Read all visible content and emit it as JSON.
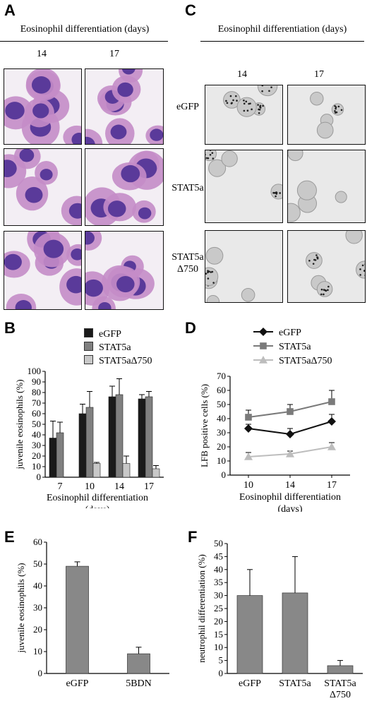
{
  "panels": {
    "a": {
      "label": "A",
      "header": "Eosinophil differentiation (days)",
      "days": [
        "14",
        "17"
      ],
      "rows": [
        "eGFP",
        "STAT5a",
        "STAT5a",
        "Δ750"
      ]
    },
    "b": {
      "label": "B"
    },
    "c": {
      "label": "C",
      "header": "Eosinophil differentiation (days)",
      "days": [
        "14",
        "17"
      ]
    },
    "d": {
      "label": "D"
    },
    "e": {
      "label": "E"
    },
    "f": {
      "label": "F"
    }
  },
  "colors": {
    "egfp_bar": "#1a1a1a",
    "stat5a_bar": "#808080",
    "delta_bar": "#c8c8c8",
    "egfp_line": "#111111",
    "stat5a_line": "#7a7a7a",
    "delta_line": "#bdbdbd",
    "single_bar": "#888888"
  },
  "chart_data": [
    {
      "panel": "B",
      "type": "bar",
      "categories": [
        "7",
        "10",
        "14",
        "17"
      ],
      "series": [
        {
          "name": "eGFP",
          "values": [
            37,
            60,
            76,
            74
          ],
          "errors": [
            16,
            9,
            10,
            4
          ]
        },
        {
          "name": "STAT5a",
          "values": [
            42,
            66,
            78,
            76
          ],
          "errors": [
            10,
            15,
            15,
            5
          ]
        },
        {
          "name": "STAT5aΔ750",
          "values": [
            null,
            13,
            13,
            8
          ],
          "errors": [
            null,
            1,
            7,
            3
          ]
        }
      ],
      "xlabel": "Eosinophil differentiation",
      "xlabel2": "(days)",
      "ylabel": "juvenile eosinophils (%)",
      "ylim": [
        0,
        100
      ],
      "yticks": [
        "0",
        "10",
        "20",
        "30",
        "40",
        "50",
        "60",
        "70",
        "80",
        "90",
        "100"
      ]
    },
    {
      "panel": "D",
      "type": "line",
      "x": [
        "10",
        "14",
        "17"
      ],
      "series": [
        {
          "name": "eGFP",
          "values": [
            33,
            29,
            38
          ],
          "errors": [
            3,
            4,
            5
          ],
          "marker": "diamond"
        },
        {
          "name": "STAT5a",
          "values": [
            41,
            45,
            52
          ],
          "errors": [
            5,
            5,
            8
          ],
          "marker": "square"
        },
        {
          "name": "STAT5aΔ750",
          "values": [
            13,
            15,
            20
          ],
          "errors": [
            3,
            2,
            3
          ],
          "marker": "triangle"
        }
      ],
      "xlabel": "Eosinophil differentiation",
      "xlabel2": "(days)",
      "ylabel": "LFB positive cells (%)",
      "ylim": [
        0,
        70
      ],
      "yticks": [
        "0",
        "10",
        "20",
        "30",
        "40",
        "50",
        "60",
        "70"
      ]
    },
    {
      "panel": "E",
      "type": "bar",
      "categories": [
        "eGFP",
        "5BDN"
      ],
      "series": [
        {
          "values": [
            49,
            9
          ],
          "errors": [
            2,
            3
          ]
        }
      ],
      "xlabel": "",
      "ylabel": "juvenile eosinophils (%)",
      "ylim": [
        0,
        60
      ],
      "yticks": [
        "0",
        "10",
        "20",
        "30",
        "40",
        "50",
        "60"
      ]
    },
    {
      "panel": "F",
      "type": "bar",
      "categories": [
        "eGFP",
        "STAT5a",
        "STAT5a"
      ],
      "category_line2": [
        "",
        "",
        "Δ750"
      ],
      "series": [
        {
          "values": [
            30,
            31,
            3
          ],
          "errors": [
            10,
            14,
            2
          ]
        }
      ],
      "xlabel": "",
      "ylabel": "neutrophil differentiation (%)",
      "ylim": [
        0,
        50
      ],
      "yticks": [
        "0",
        "5",
        "10",
        "15",
        "20",
        "25",
        "30",
        "35",
        "40",
        "45",
        "50"
      ]
    }
  ]
}
